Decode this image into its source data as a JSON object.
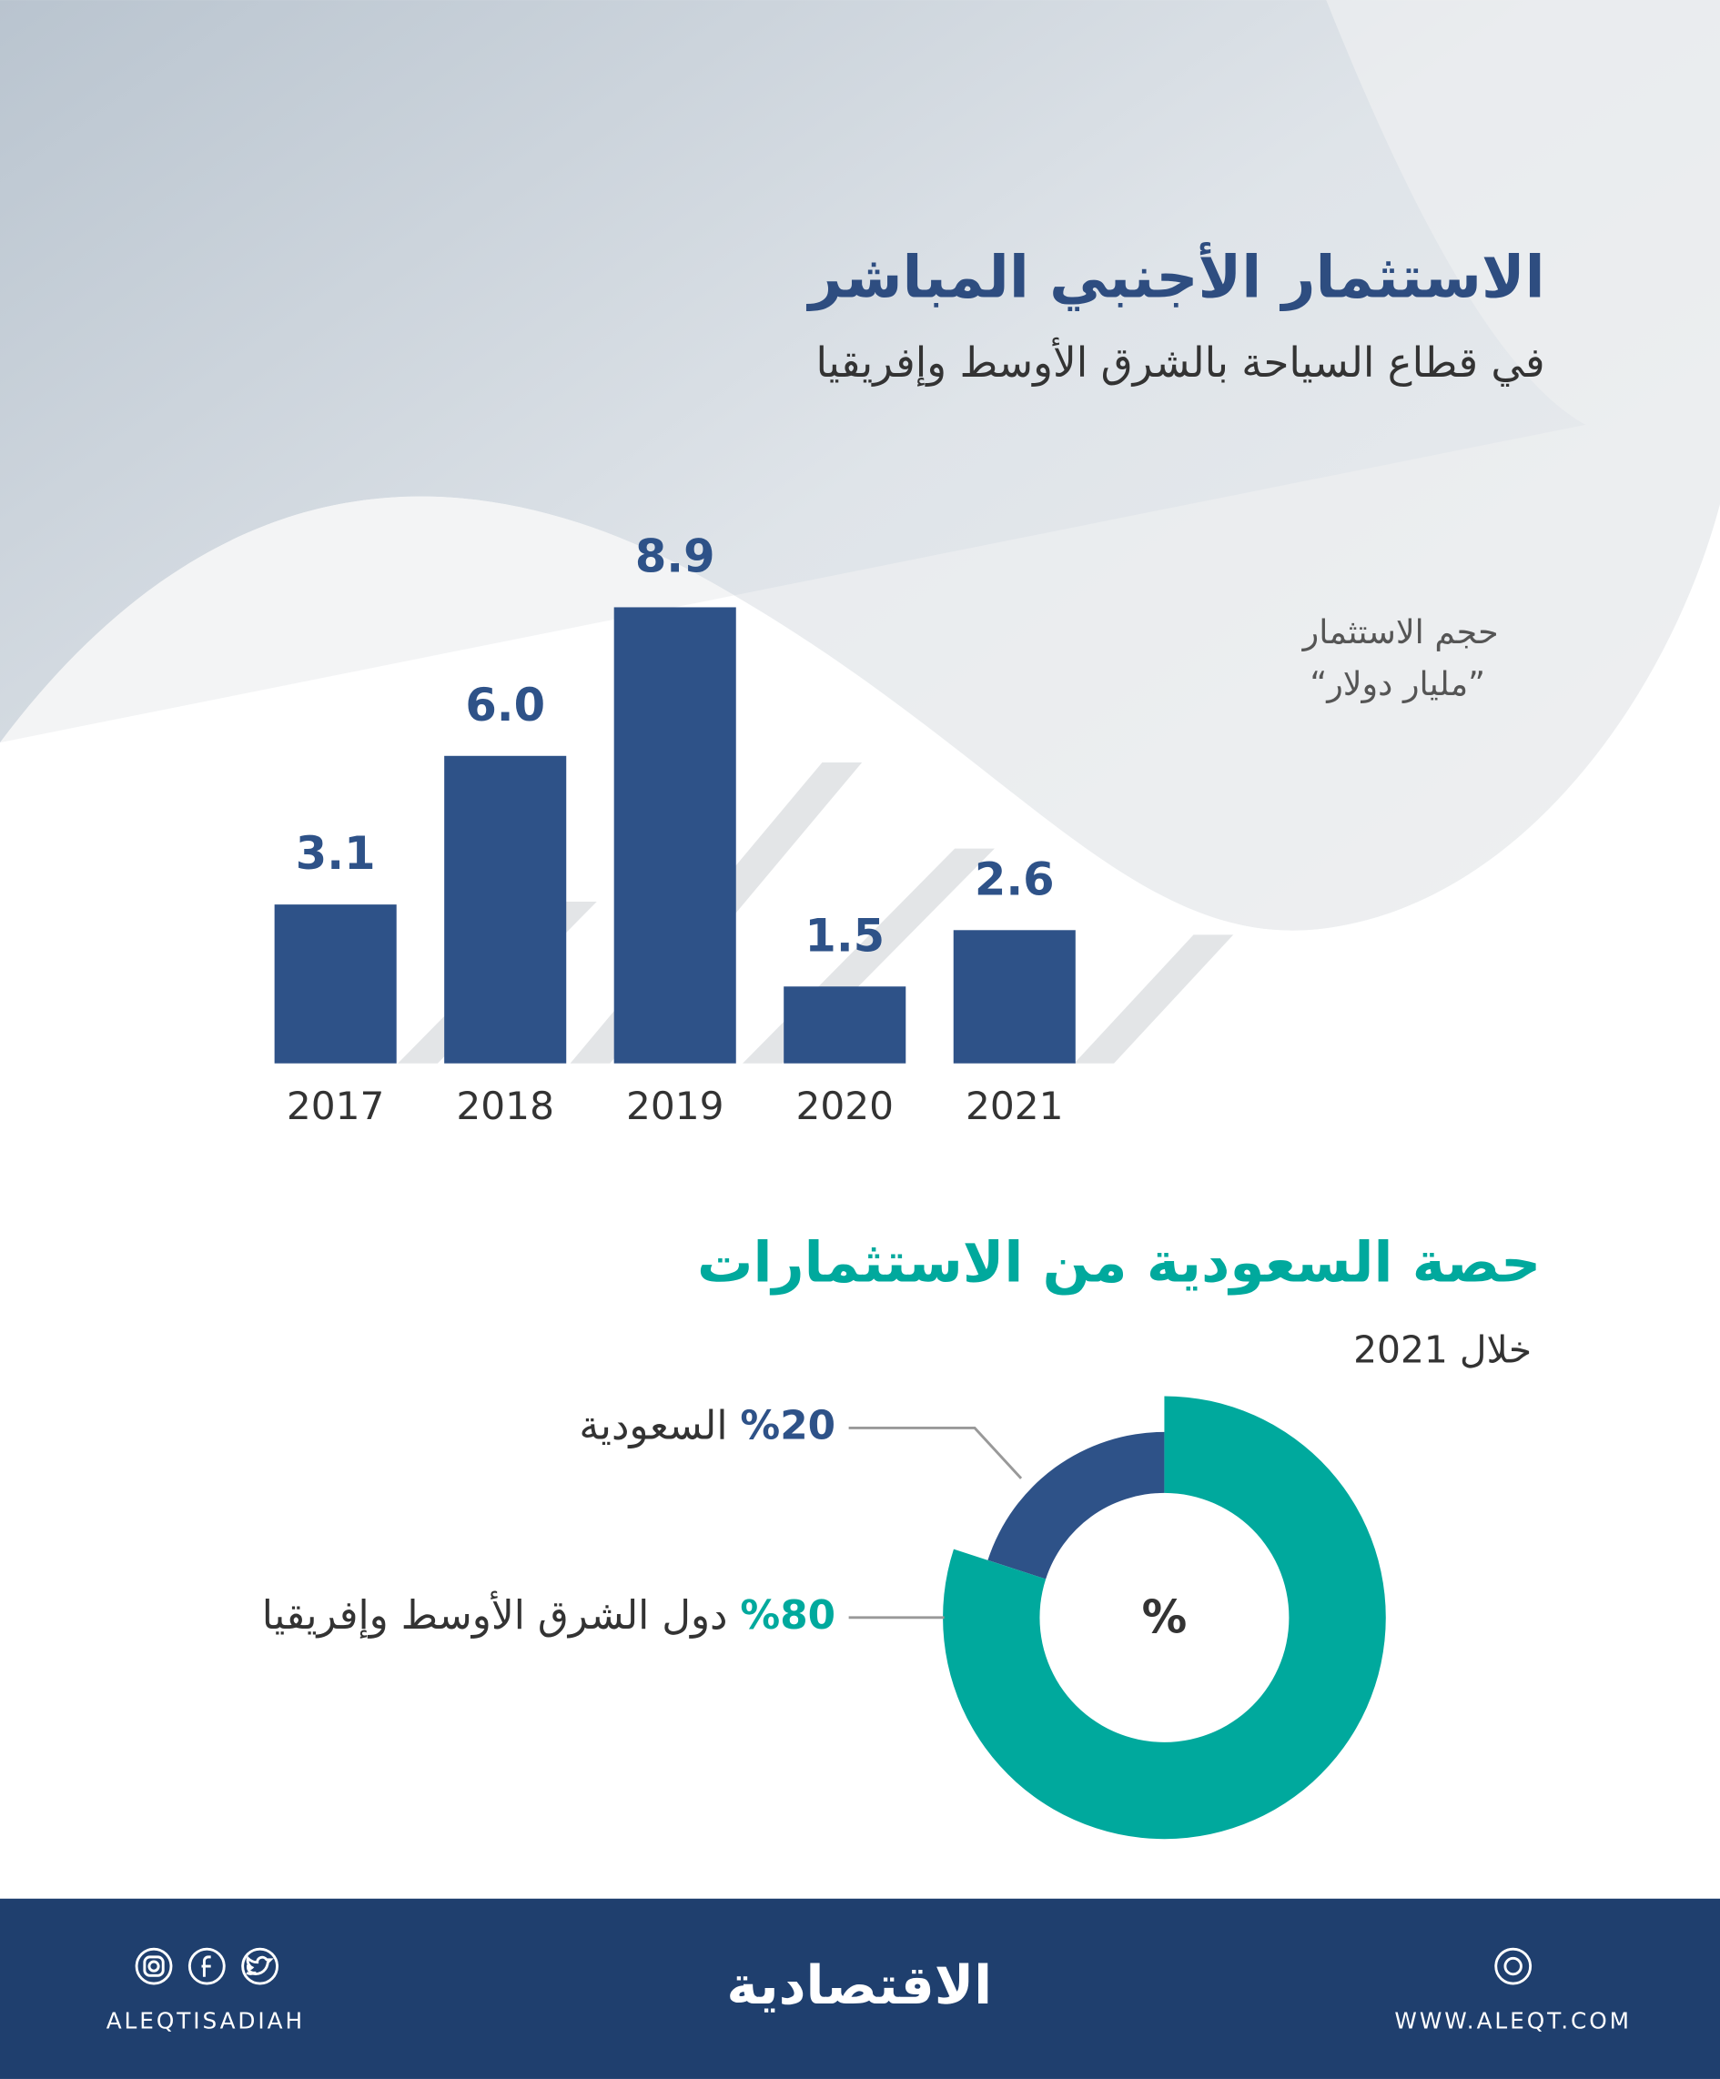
{
  "chart_data": [
    {
      "type": "bar",
      "title": "الاستثمار الأجنبي المباشر",
      "subtitle": "في قطاع السياحة بالشرق الأوسط وإفريقيا",
      "ylabel": "حجم الاستثمار",
      "unit": "”مليار دولار“",
      "categories": [
        "2017",
        "2018",
        "2019",
        "2020",
        "2021"
      ],
      "values": [
        3.1,
        6.0,
        8.9,
        1.5,
        2.6
      ],
      "value_labels": [
        "3.1",
        "6.0",
        "8.9",
        "1.5",
        "2.6"
      ],
      "color": "#2e5288"
    },
    {
      "type": "pie",
      "title": "حصة السعودية من الاستثمارات",
      "subtitle": "خلال 2021",
      "center_label": "%",
      "categories": [
        "السعودية",
        "دول الشرق الأوسط وإفريقيا"
      ],
      "values": [
        20,
        80
      ],
      "value_labels": [
        "%20",
        "%80"
      ],
      "colors": [
        "#2e5288",
        "#00a99d"
      ]
    }
  ],
  "footer": {
    "social": "ALEQTISADIAH",
    "logo": "الاقتصادية",
    "website": "WWW.ALEQT.COM"
  }
}
